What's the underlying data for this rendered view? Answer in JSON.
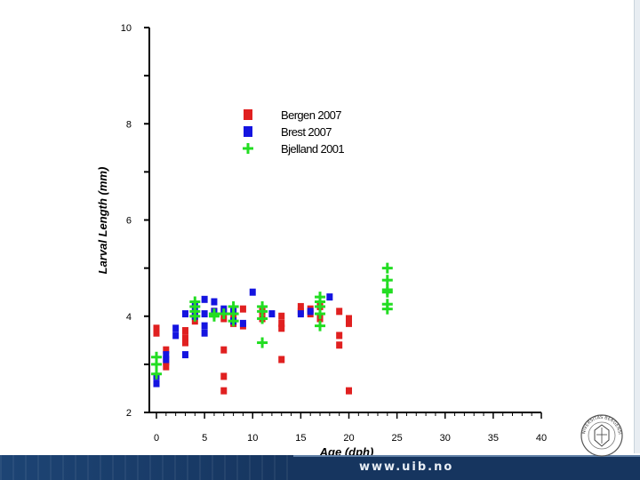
{
  "chart_data": {
    "type": "scatter",
    "title": "",
    "xlabel": "Age (dph)",
    "ylabel": "Larval Length (mm)",
    "xlim": [
      0,
      40
    ],
    "ylim": [
      2,
      10
    ],
    "x_ticks": [
      "0",
      "5",
      "10",
      "15",
      "20",
      "25",
      "30",
      "35",
      "40"
    ],
    "y_ticks": [
      "2",
      "4",
      "6",
      "8",
      "10"
    ],
    "legend_position": "top-center",
    "series": [
      {
        "name": "Bergen 2007",
        "marker": "square",
        "color": "#e02020",
        "points": [
          [
            0,
            3.65
          ],
          [
            0,
            3.75
          ],
          [
            1,
            2.95
          ],
          [
            1,
            3.05
          ],
          [
            1,
            3.3
          ],
          [
            3,
            3.45
          ],
          [
            3,
            3.55
          ],
          [
            3,
            3.7
          ],
          [
            4,
            3.9
          ],
          [
            4,
            4.05
          ],
          [
            6,
            4.05
          ],
          [
            6,
            4.1
          ],
          [
            7,
            2.45
          ],
          [
            7,
            2.75
          ],
          [
            7,
            3.3
          ],
          [
            7,
            3.95
          ],
          [
            7,
            4.1
          ],
          [
            8,
            3.85
          ],
          [
            8,
            3.95
          ],
          [
            8,
            4.1
          ],
          [
            9,
            3.8
          ],
          [
            9,
            4.15
          ],
          [
            11,
            3.95
          ],
          [
            11,
            4.1
          ],
          [
            13,
            3.1
          ],
          [
            13,
            3.75
          ],
          [
            13,
            3.85
          ],
          [
            13,
            4.0
          ],
          [
            15,
            4.1
          ],
          [
            15,
            4.2
          ],
          [
            16,
            4.05
          ],
          [
            16,
            4.15
          ],
          [
            17,
            3.95
          ],
          [
            17,
            4.2
          ],
          [
            19,
            3.4
          ],
          [
            19,
            3.6
          ],
          [
            19,
            4.1
          ],
          [
            20,
            2.45
          ],
          [
            20,
            3.85
          ],
          [
            20,
            3.95
          ]
        ]
      },
      {
        "name": "Brest 2007",
        "marker": "square",
        "color": "#1414e0",
        "points": [
          [
            0,
            2.6
          ],
          [
            0,
            2.75
          ],
          [
            1,
            3.1
          ],
          [
            1,
            3.2
          ],
          [
            2,
            3.6
          ],
          [
            2,
            3.75
          ],
          [
            3,
            3.2
          ],
          [
            3,
            4.05
          ],
          [
            4,
            4.0
          ],
          [
            4,
            4.2
          ],
          [
            5,
            3.65
          ],
          [
            5,
            3.8
          ],
          [
            5,
            4.05
          ],
          [
            5,
            4.35
          ],
          [
            6,
            4.1
          ],
          [
            6,
            4.3
          ],
          [
            7,
            4.15
          ],
          [
            8,
            3.9
          ],
          [
            8,
            4.1
          ],
          [
            9,
            3.85
          ],
          [
            10,
            4.5
          ],
          [
            12,
            4.05
          ],
          [
            15,
            4.05
          ],
          [
            16,
            4.1
          ],
          [
            18,
            4.4
          ]
        ]
      },
      {
        "name": "Bjelland 2001",
        "marker": "plus",
        "color": "#22dd22",
        "points": [
          [
            0,
            2.8
          ],
          [
            0,
            3.0
          ],
          [
            0,
            3.15
          ],
          [
            4,
            4.0
          ],
          [
            4,
            4.1
          ],
          [
            4,
            4.2
          ],
          [
            4,
            4.3
          ],
          [
            6,
            4.0
          ],
          [
            6,
            4.05
          ],
          [
            7,
            4.05
          ],
          [
            8,
            3.9
          ],
          [
            8,
            4.05
          ],
          [
            8,
            4.2
          ],
          [
            11,
            3.45
          ],
          [
            11,
            3.95
          ],
          [
            11,
            4.1
          ],
          [
            11,
            4.2
          ],
          [
            17,
            3.8
          ],
          [
            17,
            4.05
          ],
          [
            17,
            4.2
          ],
          [
            17,
            4.3
          ],
          [
            17,
            4.4
          ],
          [
            24,
            4.15
          ],
          [
            24,
            4.25
          ],
          [
            24,
            4.5
          ],
          [
            24,
            4.55
          ],
          [
            24,
            4.75
          ],
          [
            24,
            5.0
          ]
        ]
      }
    ]
  },
  "footer": {
    "url": "www.uib.no"
  },
  "logo": {
    "text": "UNIVERSITAS BERGENSIS"
  }
}
